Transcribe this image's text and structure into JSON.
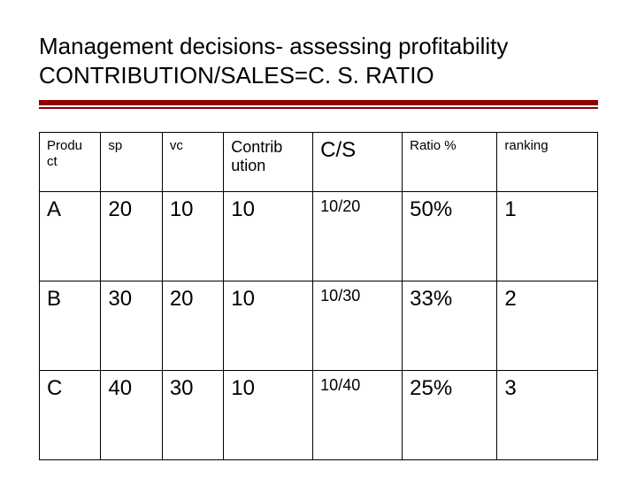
{
  "title": {
    "line1": "Management decisions- assessing profitability",
    "line2": "CONTRIBUTION/SALES=C. S. RATIO"
  },
  "accent_color": "#8b0000",
  "table": {
    "columns": [
      {
        "label": "Produ ct",
        "size": "hdr-small"
      },
      {
        "label": "sp",
        "size": "hdr-small"
      },
      {
        "label": "vc",
        "size": "hdr-small"
      },
      {
        "label": "Contrib ution",
        "size": "hdr-med"
      },
      {
        "label": "C/S",
        "size": "hdr-big"
      },
      {
        "label": "Ratio %",
        "size": "hdr-small"
      },
      {
        "label": "ranking",
        "size": "hdr-small"
      }
    ],
    "rows": [
      {
        "product": {
          "text": "A",
          "size": "cell-big"
        },
        "sp": {
          "text": "20",
          "size": "cell-big"
        },
        "vc": {
          "text": "10",
          "size": "cell-big"
        },
        "contribution": {
          "text": "10",
          "size": "cell-big"
        },
        "cs": {
          "text": "10/20",
          "size": "cell-med"
        },
        "ratio": {
          "text": "50%",
          "size": "cell-big"
        },
        "ranking": {
          "text": "1",
          "size": "cell-big"
        }
      },
      {
        "product": {
          "text": "B",
          "size": "cell-big"
        },
        "sp": {
          "text": "30",
          "size": "cell-big"
        },
        "vc": {
          "text": "20",
          "size": "cell-big"
        },
        "contribution": {
          "text": "10",
          "size": "cell-big"
        },
        "cs": {
          "text": "10/30",
          "size": "cell-med"
        },
        "ratio": {
          "text": "33%",
          "size": "cell-big"
        },
        "ranking": {
          "text": "2",
          "size": "cell-big"
        }
      },
      {
        "product": {
          "text": "C",
          "size": "cell-big"
        },
        "sp": {
          "text": "40",
          "size": "cell-big"
        },
        "vc": {
          "text": "30",
          "size": "cell-big"
        },
        "contribution": {
          "text": "10",
          "size": "cell-big"
        },
        "cs": {
          "text": "10/40",
          "size": "cell-med"
        },
        "ratio": {
          "text": "25%",
          "size": "cell-big"
        },
        "ranking": {
          "text": "3",
          "size": "cell-big"
        }
      }
    ]
  }
}
